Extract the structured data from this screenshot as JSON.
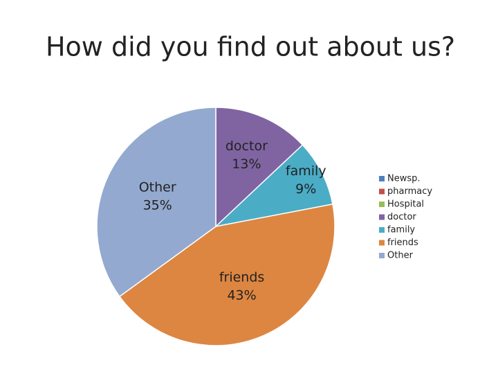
{
  "chart_data": {
    "type": "pie",
    "title": "How did you find out about us?",
    "categories": [
      "Newsp.",
      "pharmacy",
      "Hospital",
      "doctor",
      "family",
      "friends",
      "Other"
    ],
    "values": [
      0,
      0,
      0,
      13,
      9,
      43,
      35
    ],
    "value_labels": [
      null,
      null,
      null,
      "13%",
      "9%",
      "43%",
      "35%"
    ],
    "colors": [
      "#4f81bd",
      "#c0504d",
      "#9bbb59",
      "#8064a2",
      "#4bacc6",
      "#dd8641",
      "#93a9cf"
    ],
    "legend": "right"
  }
}
